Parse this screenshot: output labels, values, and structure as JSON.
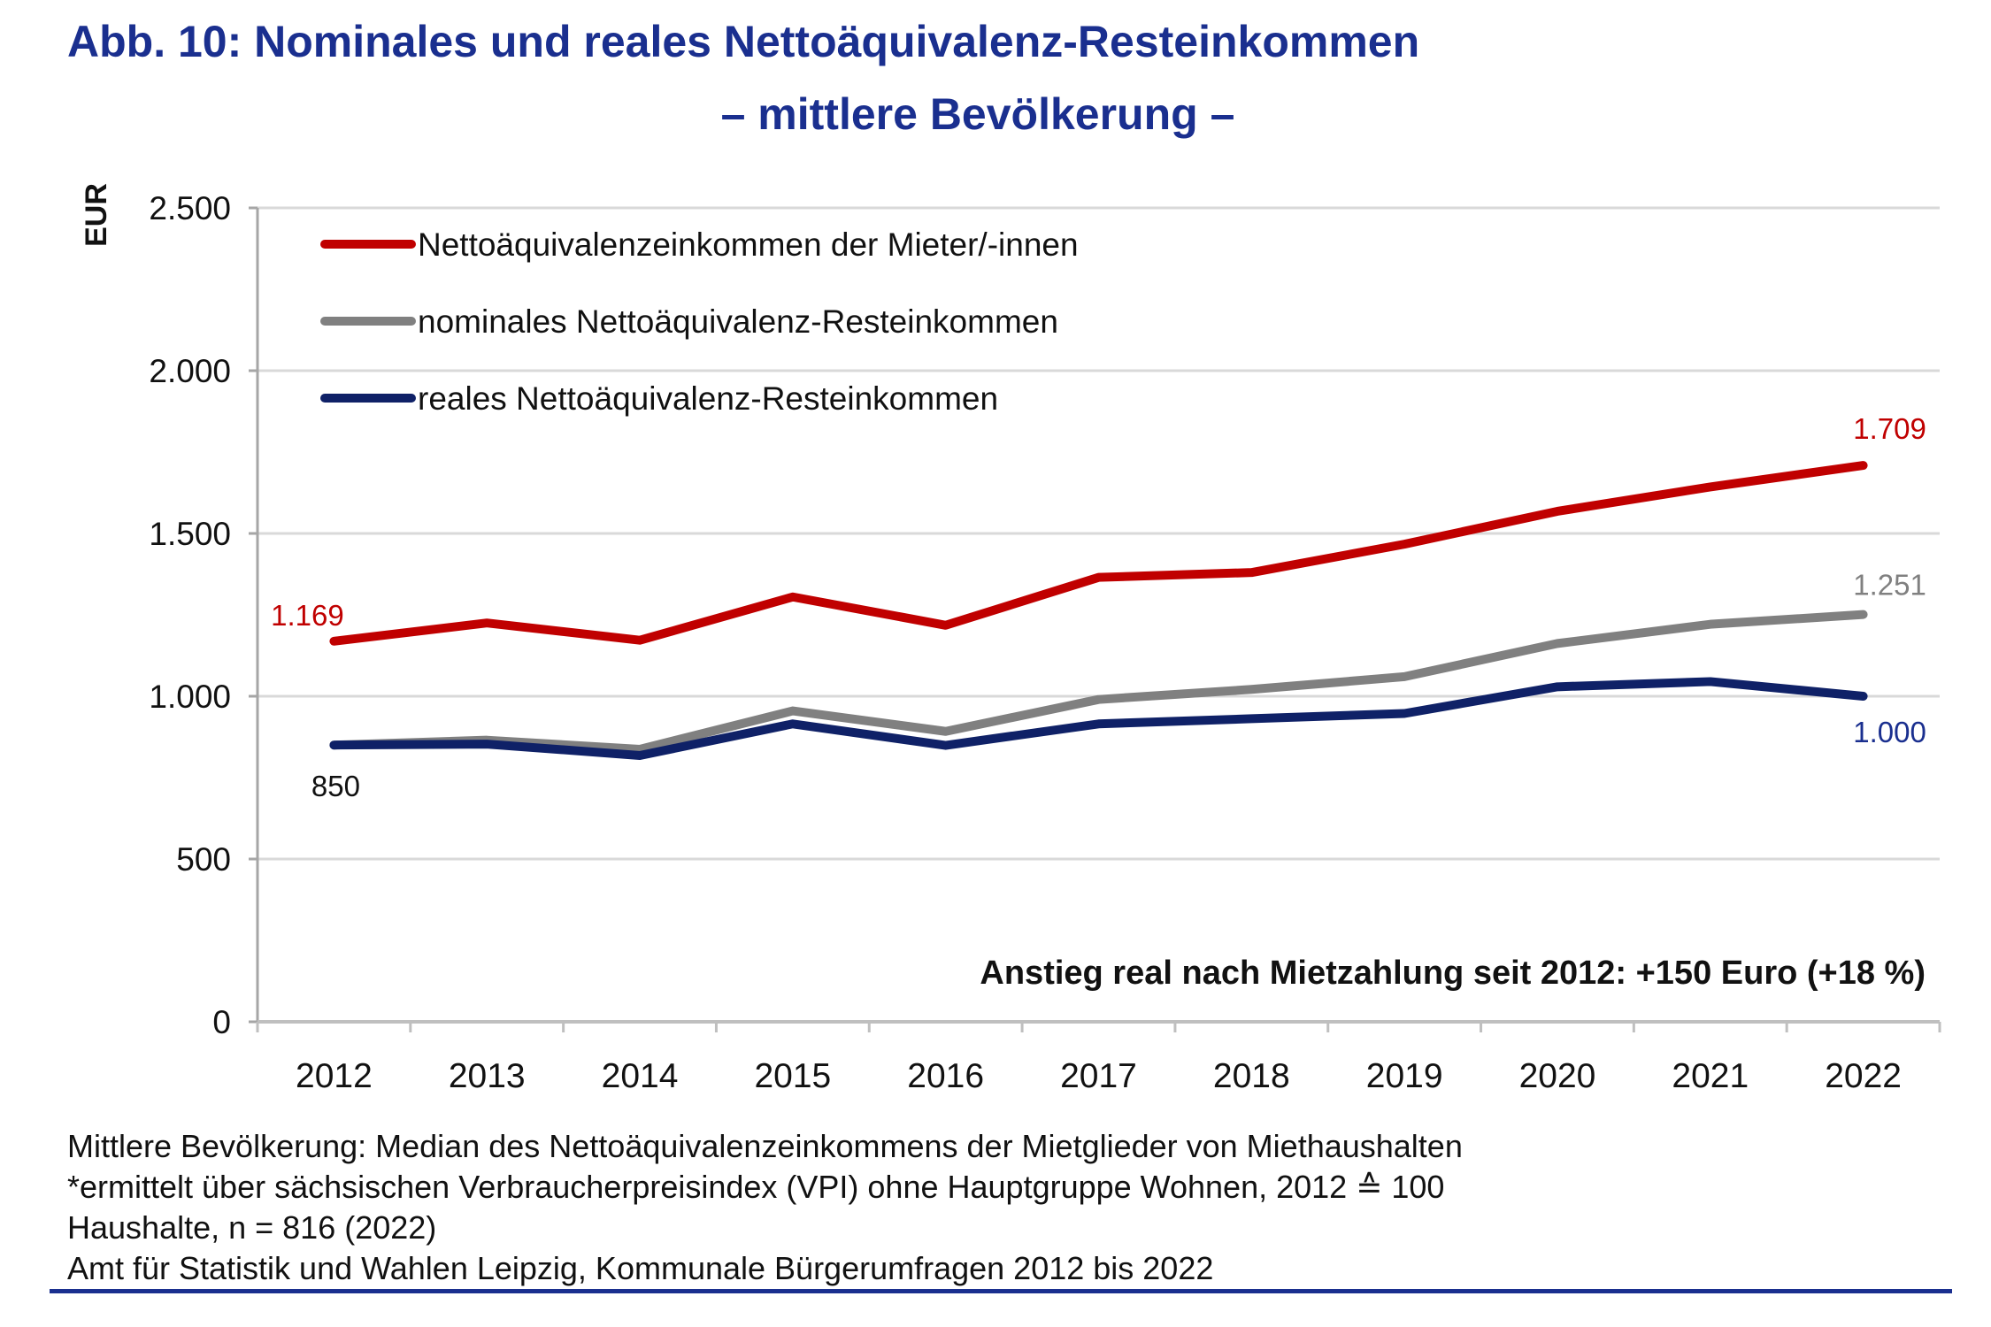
{
  "title": {
    "line1": "Abb. 10: Nominales und reales Nettoäquivalenz-Resteinkommen",
    "line2": "– mittlere Bevölkerung –"
  },
  "chart_data": {
    "type": "line",
    "title": "Abb. 10: Nominales und reales Nettoäquivalenz-Resteinkommen – mittlere Bevölkerung –",
    "xlabel": "",
    "ylabel": "EUR",
    "ylim": [
      0,
      2500
    ],
    "yticks": [
      0,
      500,
      1000,
      1500,
      2000,
      2500
    ],
    "ytick_labels": [
      "0",
      "500",
      "1.000",
      "1.500",
      "2.000",
      "2.500"
    ],
    "grid": true,
    "legend_position": "top-left",
    "categories": [
      "2012",
      "2013",
      "2014",
      "2015",
      "2016",
      "2017",
      "2018",
      "2019",
      "2020",
      "2021",
      "2022"
    ],
    "series": [
      {
        "name": "Nettoäquivalenzeinkommen der Mieter/-innen",
        "color": "#c00000",
        "values": [
          1169,
          1225,
          1172,
          1305,
          1218,
          1365,
          1380,
          1467,
          1568,
          1643,
          1709
        ],
        "labels": [
          {
            "index": 0,
            "text": "1.169"
          },
          {
            "index": 10,
            "text": "1.709"
          }
        ]
      },
      {
        "name": "nominales Nettoäquivalenz-Resteinkommen",
        "color": "#808080",
        "values": [
          850,
          865,
          837,
          955,
          892,
          990,
          1021,
          1060,
          1162,
          1221,
          1251
        ],
        "labels": [
          {
            "index": 10,
            "text": "1.251"
          }
        ]
      },
      {
        "name": "reales Nettoäquivalenz-Resteinkommen",
        "color": "#0f2167",
        "values": [
          850,
          853,
          818,
          915,
          849,
          915,
          931,
          947,
          1029,
          1045,
          1000
        ],
        "labels": [
          {
            "index": 0,
            "text": "850"
          },
          {
            "index": 10,
            "text": "1.000"
          }
        ]
      }
    ],
    "annotations": [
      "Anstieg real nach Mietzahlung seit 2012: +150 Euro (+18 %)"
    ]
  },
  "footer": {
    "lines": [
      "Mittlere Bevölkerung: Median des Nettoäquivalenzeinkommens der Mietglieder von Miethaushalten",
      "*ermittelt über sächsischen Verbraucherpreisindex (VPI) ohne Hauptgruppe Wohnen, 2012 ≙ 100",
      "Haushalte, n = 816 (2022)",
      "Amt für Statistik und Wahlen Leipzig, Kommunale Bürgerumfragen 2012 bis 2022"
    ]
  }
}
